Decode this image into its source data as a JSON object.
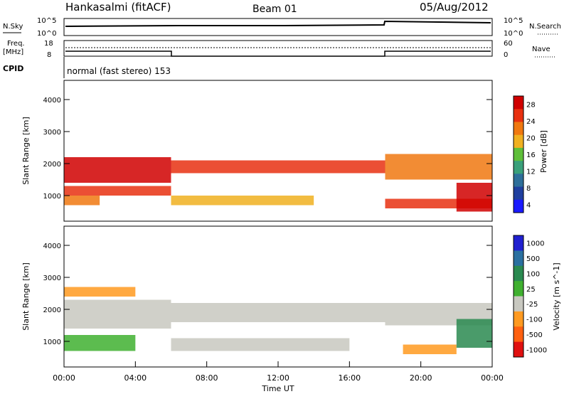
{
  "header": {
    "station": "Hankasalmi (fitACF)",
    "beam": "Beam 01",
    "date": "05/Aug/2012"
  },
  "noise_panel": {
    "left_label": "N.Sky",
    "right_label": "N.Search",
    "left_ticks": [
      "10^5",
      "10^0"
    ],
    "right_ticks": [
      "10^5",
      "10^0"
    ]
  },
  "freq_panel": {
    "left_label_1": "Freq.",
    "left_label_2": "[MHz]",
    "left_ticks": [
      "18",
      "8"
    ],
    "right_label": "Nave",
    "right_ticks": [
      "60",
      "0"
    ]
  },
  "cpid": {
    "label": "CPID",
    "text": "normal (fast stereo) 153"
  },
  "colors": {
    "power": [
      "#1a1aff",
      "#1f3f9f",
      "#2e6f9a",
      "#3aa07a",
      "#5fbf3a",
      "#f0b020",
      "#f07810",
      "#e83010",
      "#d00000"
    ],
    "velocity": [
      "#e01010",
      "#ff6010",
      "#ff9a20",
      "#c8c8c0",
      "#40b030",
      "#2a8a50",
      "#2a70a0",
      "#2020d0"
    ]
  },
  "chart_data": [
    {
      "type": "heatmap",
      "name": "power",
      "ylabel": "Slant Range [km]",
      "yticks": [
        "4000",
        "3000",
        "2000",
        "1000"
      ],
      "ylim": [
        200,
        4600
      ],
      "xlim": [
        0,
        24
      ],
      "colorbar_label": "Power [dB]",
      "colorbar_ticks": [
        "28",
        "24",
        "20",
        "16",
        "12",
        "8",
        "4"
      ],
      "bands": [
        {
          "x": [
            0,
            6
          ],
          "y": [
            2200,
            1400
          ],
          "level": 8
        },
        {
          "x": [
            0,
            6
          ],
          "y": [
            1300,
            1000
          ],
          "level": 7
        },
        {
          "x": [
            0,
            2
          ],
          "y": [
            1000,
            700
          ],
          "level": 6
        },
        {
          "x": [
            6,
            18
          ],
          "y": [
            2100,
            1700
          ],
          "level": 7
        },
        {
          "x": [
            6,
            14
          ],
          "y": [
            1000,
            700
          ],
          "level": 5
        },
        {
          "x": [
            18,
            24
          ],
          "y": [
            2300,
            1500
          ],
          "level": 6
        },
        {
          "x": [
            18,
            24
          ],
          "y": [
            900,
            600
          ],
          "level": 7
        },
        {
          "x": [
            22,
            24
          ],
          "y": [
            1400,
            500
          ],
          "level": 8
        }
      ]
    },
    {
      "type": "heatmap",
      "name": "velocity",
      "ylabel": "Slant Range [km]",
      "yticks": [
        "4000",
        "3000",
        "2000",
        "1000"
      ],
      "ylim": [
        200,
        4600
      ],
      "xlim": [
        0,
        24
      ],
      "colorbar_label": "Velocity [m s^-1]",
      "colorbar_ticks": [
        "1000",
        "500",
        "100",
        "25",
        "-25",
        "-100",
        "-500",
        "-1000"
      ],
      "bands": [
        {
          "x": [
            0,
            6
          ],
          "y": [
            2300,
            1400
          ],
          "level": 3
        },
        {
          "x": [
            0,
            4
          ],
          "y": [
            2700,
            2400
          ],
          "level": 2
        },
        {
          "x": [
            0,
            4
          ],
          "y": [
            1200,
            700
          ],
          "level": 4
        },
        {
          "x": [
            6,
            18
          ],
          "y": [
            2200,
            1600
          ],
          "level": 3
        },
        {
          "x": [
            6,
            16
          ],
          "y": [
            1100,
            700
          ],
          "level": 3
        },
        {
          "x": [
            18,
            24
          ],
          "y": [
            2200,
            1500
          ],
          "level": 3
        },
        {
          "x": [
            19,
            22
          ],
          "y": [
            900,
            600
          ],
          "level": 2
        },
        {
          "x": [
            22,
            24
          ],
          "y": [
            1700,
            800
          ],
          "level": 5
        }
      ]
    }
  ],
  "time_axis": {
    "label": "Time UT",
    "ticks": [
      "00:00",
      "04:00",
      "08:00",
      "12:00",
      "16:00",
      "20:00",
      "00:00"
    ]
  }
}
